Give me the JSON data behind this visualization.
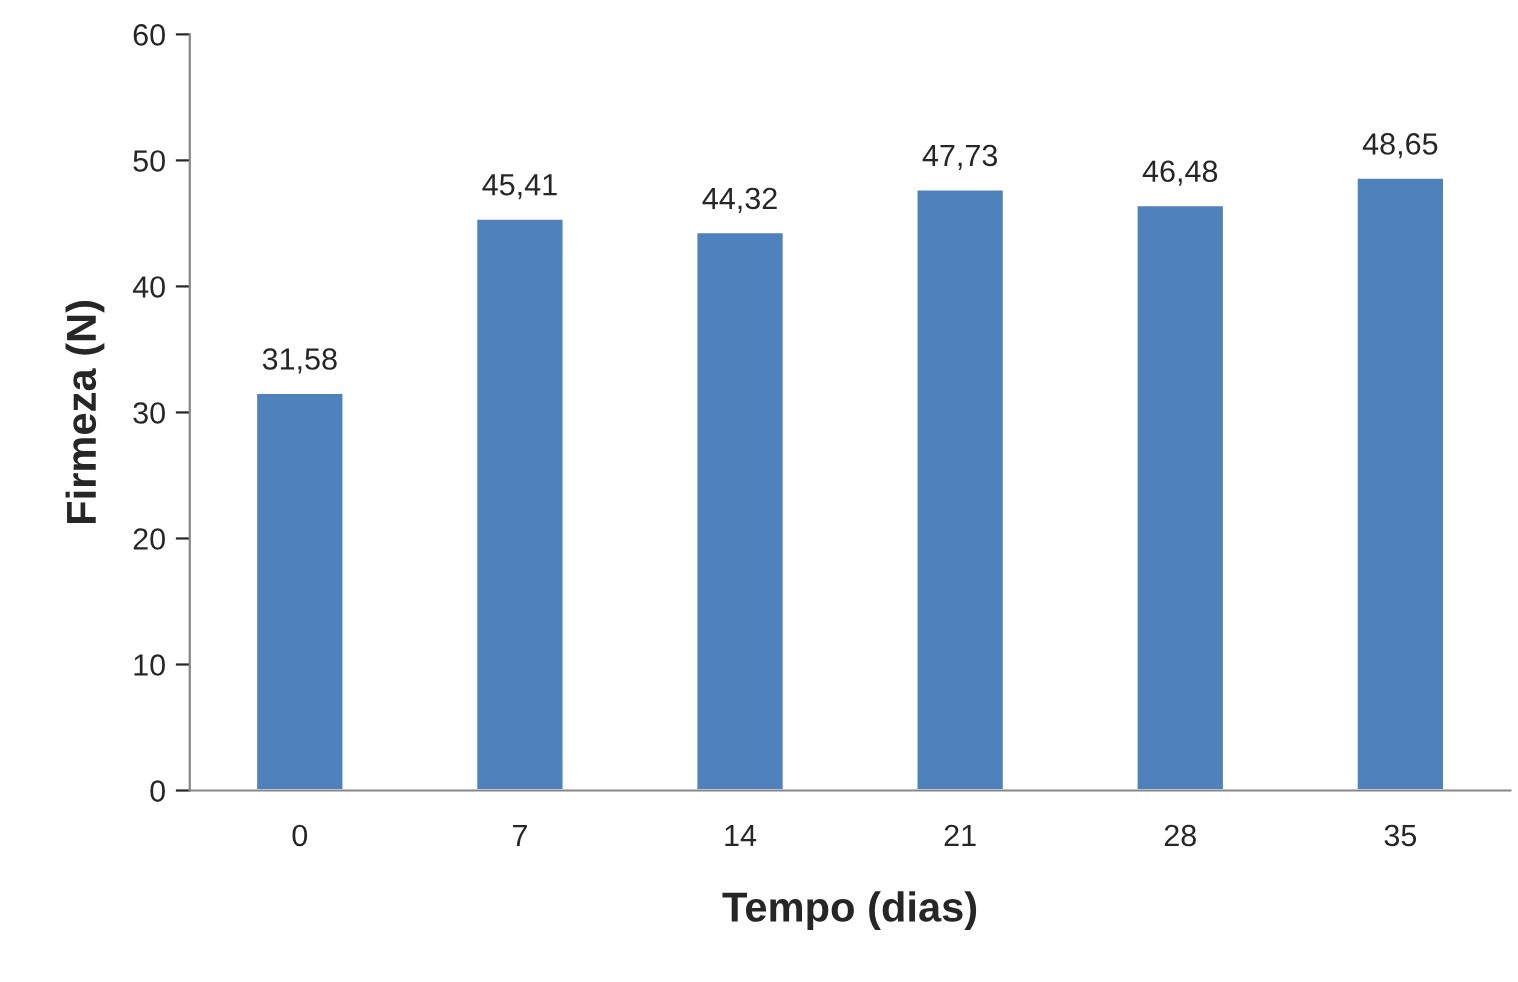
{
  "chart_data": {
    "type": "bar",
    "xlabel": "Tempo (dias)",
    "ylabel": "Firmeza (N)",
    "categories": [
      "0",
      "7",
      "14",
      "21",
      "28",
      "35"
    ],
    "values": [
      31.58,
      45.41,
      44.32,
      47.73,
      46.48,
      48.65
    ],
    "value_labels": [
      "31,58",
      "45,41",
      "44,32",
      "47,73",
      "46,48",
      "48,65"
    ],
    "color": "#4f81bd",
    "ylim": [
      0,
      60
    ],
    "yticks": [
      0,
      10,
      20,
      30,
      40,
      50,
      60
    ],
    "grid": false,
    "legend": false
  }
}
